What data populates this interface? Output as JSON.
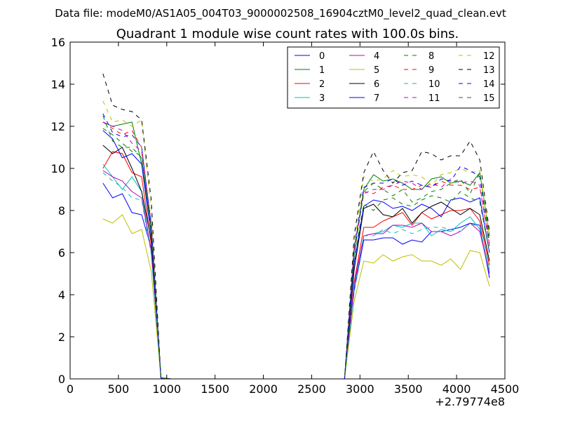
{
  "figure": {
    "suptitle": "Data file: modeM0/AS1A05_004T03_9000002508_16904cztM0_level2_quad_clean.evt",
    "title": "Quadrant 1 module wise count rates with 100.0s bins.",
    "x_offset_label": "+2.79774e8"
  },
  "chart_data": {
    "type": "line",
    "title": "Quadrant 1 module wise count rates with 100.0s bins.",
    "xlabel": "",
    "ylabel": "",
    "xlim": [
      0,
      4500
    ],
    "ylim": [
      0,
      16
    ],
    "x_ticks": [
      0,
      500,
      1000,
      1500,
      2000,
      2500,
      3000,
      3500,
      4000,
      4500
    ],
    "y_ticks": [
      0,
      2,
      4,
      6,
      8,
      10,
      12,
      14,
      16
    ],
    "x_offset": "+2.79774e8",
    "grid": false,
    "legend_placement": "top-right",
    "legend_columns": 4,
    "x": [
      340,
      440,
      540,
      640,
      740,
      840,
      940,
      1040,
      1140,
      1240,
      1340,
      1440,
      1540,
      1640,
      1740,
      1840,
      1940,
      2040,
      2140,
      2240,
      2340,
      2440,
      2540,
      2640,
      2740,
      2840,
      2940,
      3040,
      3140,
      3240,
      3340,
      3440,
      3540,
      3640,
      3740,
      3840,
      3940,
      4040,
      4140,
      4240,
      4340
    ],
    "series": [
      {
        "name": "0",
        "color": "#0000ff",
        "dash": "solid",
        "values": [
          9.3,
          8.6,
          8.8,
          7.9,
          7.8,
          6.2,
          0.05,
          0,
          0,
          0,
          0,
          0,
          0,
          0,
          0,
          0,
          0,
          0,
          0,
          0,
          0,
          0,
          0,
          0,
          0,
          0,
          4.2,
          6.6,
          6.6,
          6.7,
          6.7,
          6.4,
          6.6,
          6.5,
          7.0,
          7.0,
          7.1,
          7.2,
          7.4,
          7.3,
          4.8
        ]
      },
      {
        "name": "1",
        "color": "#008000",
        "dash": "solid",
        "values": [
          12.2,
          12.0,
          12.1,
          12.2,
          10.2,
          7.2,
          0.05,
          0,
          0,
          0,
          0,
          0,
          0,
          0,
          0,
          0,
          0,
          0,
          0,
          0,
          0,
          0,
          0,
          0,
          0,
          0,
          6.2,
          9.0,
          9.7,
          9.4,
          9.5,
          9.3,
          9.0,
          9.0,
          9.5,
          9.6,
          9.3,
          9.4,
          9.2,
          9.8,
          6.8
        ]
      },
      {
        "name": "2",
        "color": "#ff0000",
        "dash": "solid",
        "values": [
          10.0,
          10.8,
          10.7,
          9.8,
          9.6,
          6.4,
          0.05,
          0,
          0,
          0,
          0,
          0,
          0,
          0,
          0,
          0,
          0,
          0,
          0,
          0,
          0,
          0,
          0,
          0,
          0,
          0,
          4.6,
          7.2,
          7.2,
          7.5,
          7.7,
          7.9,
          7.3,
          7.9,
          7.6,
          7.8,
          8.0,
          8.0,
          8.1,
          7.5,
          5.4
        ]
      },
      {
        "name": "3",
        "color": "#00bfbf",
        "dash": "solid",
        "values": [
          10.2,
          9.6,
          9.0,
          9.6,
          8.9,
          6.0,
          0.05,
          0,
          0,
          0,
          0,
          0,
          0,
          0,
          0,
          0,
          0,
          0,
          0,
          0,
          0,
          0,
          0,
          0,
          0,
          0,
          4.4,
          6.8,
          6.9,
          7.0,
          7.3,
          7.2,
          7.4,
          7.4,
          6.8,
          7.1,
          7.0,
          7.4,
          7.7,
          7.1,
          5.2
        ]
      },
      {
        "name": "4",
        "color": "#bf00bf",
        "dash": "solid",
        "values": [
          9.9,
          9.6,
          9.4,
          8.9,
          8.6,
          6.1,
          0.05,
          0,
          0,
          0,
          0,
          0,
          0,
          0,
          0,
          0,
          0,
          0,
          0,
          0,
          0,
          0,
          0,
          0,
          0,
          0,
          4.5,
          6.8,
          6.9,
          6.9,
          7.3,
          7.3,
          7.2,
          7.4,
          7.0,
          7.0,
          6.8,
          7.0,
          7.4,
          7.0,
          5.0
        ]
      },
      {
        "name": "5",
        "color": "#bfbf00",
        "dash": "solid",
        "values": [
          7.6,
          7.4,
          7.8,
          6.9,
          7.1,
          5.1,
          0.05,
          0,
          0,
          0,
          0,
          0,
          0,
          0,
          0,
          0,
          0,
          0,
          0,
          0,
          0,
          0,
          0,
          0,
          0,
          0,
          3.7,
          5.6,
          5.5,
          5.9,
          5.6,
          5.8,
          5.9,
          5.6,
          5.6,
          5.4,
          5.7,
          5.2,
          6.1,
          6.0,
          4.4
        ]
      },
      {
        "name": "6",
        "color": "#000000",
        "dash": "solid",
        "values": [
          11.1,
          10.7,
          11.0,
          10.0,
          8.9,
          6.6,
          0.05,
          0,
          0,
          0,
          0,
          0,
          0,
          0,
          0,
          0,
          0,
          0,
          0,
          0,
          0,
          0,
          0,
          0,
          0,
          0,
          5.2,
          8.1,
          8.3,
          7.8,
          7.7,
          8.1,
          7.4,
          7.9,
          8.2,
          8.4,
          8.1,
          7.8,
          8.1,
          7.8,
          5.6
        ]
      },
      {
        "name": "7",
        "color": "#0000ff",
        "dash": "solid",
        "values": [
          11.8,
          11.4,
          10.5,
          10.7,
          10.2,
          6.8,
          0.05,
          0,
          0,
          0,
          0,
          0,
          0,
          0,
          0,
          0,
          0,
          0,
          0,
          0,
          0,
          0,
          0,
          0,
          0,
          0,
          5.5,
          8.2,
          8.5,
          8.4,
          8.1,
          8.2,
          8.0,
          8.3,
          8.1,
          7.7,
          8.5,
          8.6,
          8.4,
          8.6,
          6.0
        ]
      },
      {
        "name": "8",
        "color": "#008000",
        "dash": "dashed",
        "values": [
          11.9,
          11.6,
          11.2,
          10.8,
          10.6,
          7.0,
          0.05,
          0,
          0,
          0,
          0,
          0,
          0,
          0,
          0,
          0,
          0,
          0,
          0,
          0,
          0,
          0,
          0,
          0,
          0,
          0,
          5.8,
          8.3,
          8.0,
          8.5,
          8.6,
          8.3,
          8.2,
          8.5,
          8.7,
          8.6,
          8.4,
          8.9,
          8.6,
          8.4,
          6.0
        ]
      },
      {
        "name": "9",
        "color": "#ff0000",
        "dash": "dashed",
        "values": [
          12.2,
          11.9,
          11.6,
          11.8,
          11.0,
          7.3,
          0.05,
          0,
          0,
          0,
          0,
          0,
          0,
          0,
          0,
          0,
          0,
          0,
          0,
          0,
          0,
          0,
          0,
          0,
          0,
          0,
          6.0,
          8.9,
          8.8,
          9.1,
          9.2,
          9.0,
          9.0,
          9.2,
          9.1,
          9.4,
          9.2,
          9.2,
          9.0,
          9.1,
          6.4
        ]
      },
      {
        "name": "10",
        "color": "#00bfbf",
        "dash": "dashed",
        "values": [
          9.8,
          9.4,
          9.1,
          8.6,
          8.5,
          5.9,
          0.05,
          0,
          0,
          0,
          0,
          0,
          0,
          0,
          0,
          0,
          0,
          0,
          0,
          0,
          0,
          0,
          0,
          0,
          0,
          0,
          4.2,
          6.8,
          6.8,
          7.1,
          6.9,
          7.1,
          6.9,
          7.1,
          7.2,
          7.2,
          7.1,
          7.0,
          7.4,
          7.2,
          5.1
        ]
      },
      {
        "name": "11",
        "color": "#bf00bf",
        "dash": "dashed",
        "values": [
          12.2,
          12.0,
          11.8,
          11.2,
          10.8,
          7.4,
          0.05,
          0,
          0,
          0,
          0,
          0,
          0,
          0,
          0,
          0,
          0,
          0,
          0,
          0,
          0,
          0,
          0,
          0,
          0,
          0,
          6.2,
          8.8,
          9.0,
          9.0,
          9.2,
          9.4,
          9.3,
          9.0,
          9.3,
          9.1,
          9.5,
          9.3,
          9.4,
          9.2,
          6.3
        ]
      },
      {
        "name": "12",
        "color": "#bfbf00",
        "dash": "dashed",
        "values": [
          13.2,
          12.2,
          12.3,
          12.0,
          12.3,
          8.0,
          0.05,
          0,
          0,
          0,
          0,
          0,
          0,
          0,
          0,
          0,
          0,
          0,
          0,
          0,
          0,
          0,
          0,
          0,
          0,
          0,
          6.5,
          9.6,
          9.4,
          9.5,
          9.9,
          9.6,
          9.7,
          9.6,
          9.2,
          9.7,
          9.8,
          10.0,
          9.8,
          9.9,
          6.8
        ]
      },
      {
        "name": "13",
        "color": "#000000",
        "dash": "dashed",
        "values": [
          14.5,
          13.0,
          12.8,
          12.7,
          12.3,
          8.5,
          0.05,
          0,
          0,
          0,
          0,
          0,
          0,
          0,
          0,
          0,
          0,
          0,
          0,
          0,
          0,
          0,
          0,
          0,
          0,
          0,
          6.8,
          9.8,
          10.8,
          9.9,
          9.3,
          9.8,
          9.9,
          10.8,
          10.7,
          10.4,
          10.6,
          10.6,
          11.3,
          10.4,
          7.0
        ]
      },
      {
        "name": "14",
        "color": "#0000ff",
        "dash": "dashed",
        "values": [
          12.6,
          11.7,
          11.5,
          11.6,
          11.0,
          7.3,
          0.05,
          0,
          0,
          0,
          0,
          0,
          0,
          0,
          0,
          0,
          0,
          0,
          0,
          0,
          0,
          0,
          0,
          0,
          0,
          0,
          6.2,
          9.1,
          9.3,
          9.3,
          9.5,
          9.2,
          9.4,
          9.2,
          9.1,
          9.5,
          9.4,
          10.1,
          9.9,
          9.6,
          6.5
        ]
      },
      {
        "name": "15",
        "color": "#008000",
        "dash": "dashed",
        "values": [
          12.5,
          11.3,
          11.0,
          11.0,
          10.5,
          7.2,
          0.05,
          0,
          0,
          0,
          0,
          0,
          0,
          0,
          0,
          0,
          0,
          0,
          0,
          0,
          0,
          0,
          0,
          0,
          0,
          0,
          5.9,
          8.9,
          9.3,
          9.0,
          8.7,
          9.0,
          8.4,
          8.6,
          8.9,
          9.0,
          9.3,
          9.5,
          8.8,
          9.8,
          6.5
        ]
      }
    ]
  }
}
